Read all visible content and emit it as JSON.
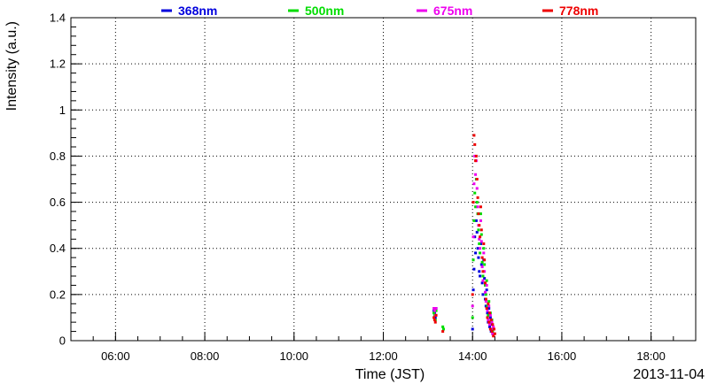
{
  "chart_data": {
    "type": "scatter",
    "title": "",
    "xlabel": "Time (JST)",
    "ylabel": "Intensity (a.u.)",
    "date_label": "2013-11-04",
    "xlim": [
      "05:00",
      "19:00"
    ],
    "ylim": [
      0,
      1.4
    ],
    "x_ticks": [
      "06:00",
      "08:00",
      "10:00",
      "12:00",
      "14:00",
      "16:00",
      "18:00"
    ],
    "y_ticks": [
      "0",
      "0.2",
      "0.4",
      "0.6",
      "0.8",
      "1",
      "1.2",
      "1.4"
    ],
    "grid": true,
    "legend_position": "top",
    "series": [
      {
        "name": "368nm",
        "color": "#0000dd",
        "x": [
          "13:08",
          "13:09",
          "13:10",
          "13:11",
          "14:00",
          "14:01",
          "14:02",
          "14:03",
          "14:04",
          "14:05",
          "14:06",
          "14:07",
          "14:08",
          "14:09",
          "14:10",
          "14:11",
          "14:12",
          "14:13",
          "14:14",
          "14:15",
          "14:16",
          "14:17",
          "14:18",
          "14:19",
          "14:20",
          "14:21",
          "14:22",
          "14:23",
          "14:24",
          "14:25",
          "14:26",
          "14:27",
          "14:28"
        ],
        "y": [
          0.13,
          0.12,
          0.1,
          0.14,
          0.05,
          0.22,
          0.31,
          0.45,
          0.38,
          0.52,
          0.47,
          0.4,
          0.36,
          0.3,
          0.28,
          0.42,
          0.33,
          0.25,
          0.2,
          0.35,
          0.27,
          0.18,
          0.15,
          0.22,
          0.12,
          0.08,
          0.14,
          0.06,
          0.1,
          0.04,
          0.07,
          0.03,
          0.05
        ]
      },
      {
        "name": "500nm",
        "color": "#00dd00",
        "x": [
          "13:08",
          "13:09",
          "13:10",
          "13:11",
          "13:20",
          "13:21",
          "14:00",
          "14:01",
          "14:02",
          "14:03",
          "14:04",
          "14:05",
          "14:06",
          "14:07",
          "14:08",
          "14:09",
          "14:10",
          "14:11",
          "14:12",
          "14:13",
          "14:14",
          "14:15",
          "14:16",
          "14:17",
          "14:18",
          "14:19",
          "14:20",
          "14:21",
          "14:22",
          "14:23",
          "14:24",
          "14:25",
          "14:26",
          "14:27"
        ],
        "y": [
          0.12,
          0.11,
          0.09,
          0.13,
          0.06,
          0.05,
          0.1,
          0.35,
          0.52,
          0.64,
          0.58,
          0.7,
          0.6,
          0.55,
          0.48,
          0.42,
          0.38,
          0.55,
          0.46,
          0.34,
          0.28,
          0.4,
          0.33,
          0.24,
          0.2,
          0.26,
          0.15,
          0.11,
          0.17,
          0.08,
          0.12,
          0.05,
          0.09,
          0.04
        ]
      },
      {
        "name": "675nm",
        "color": "#ee00ee",
        "x": [
          "13:08",
          "13:09",
          "13:10",
          "13:11",
          "14:00",
          "14:01",
          "14:02",
          "14:03",
          "14:04",
          "14:05",
          "14:06",
          "14:07",
          "14:08",
          "14:09",
          "14:10",
          "14:11",
          "14:12",
          "14:13",
          "14:14",
          "14:15",
          "14:16",
          "14:17",
          "14:18",
          "14:19",
          "14:20",
          "14:21",
          "14:22",
          "14:23",
          "14:24",
          "14:25",
          "14:26",
          "14:27",
          "14:28"
        ],
        "y": [
          0.14,
          0.13,
          0.11,
          0.14,
          0.15,
          0.45,
          0.68,
          0.8,
          0.72,
          0.78,
          0.66,
          0.58,
          0.5,
          0.44,
          0.4,
          0.52,
          0.43,
          0.32,
          0.26,
          0.38,
          0.3,
          0.21,
          0.17,
          0.24,
          0.13,
          0.09,
          0.15,
          0.07,
          0.11,
          0.05,
          0.08,
          0.03,
          0.06
        ]
      },
      {
        "name": "778nm",
        "color": "#ee0000",
        "x": [
          "13:08",
          "13:09",
          "13:10",
          "13:11",
          "13:20",
          "14:00",
          "14:01",
          "14:02",
          "14:03",
          "14:04",
          "14:05",
          "14:06",
          "14:07",
          "14:08",
          "14:09",
          "14:10",
          "14:11",
          "14:12",
          "14:13",
          "14:14",
          "14:15",
          "14:16",
          "14:17",
          "14:18",
          "14:19",
          "14:20",
          "14:21",
          "14:22",
          "14:23",
          "14:24",
          "14:25",
          "14:26",
          "14:27",
          "14:28",
          "14:29",
          "14:30"
        ],
        "y": [
          0.1,
          0.09,
          0.08,
          0.11,
          0.04,
          0.2,
          0.6,
          0.89,
          0.85,
          0.78,
          0.8,
          0.7,
          0.62,
          0.55,
          0.5,
          0.45,
          0.58,
          0.48,
          0.36,
          0.3,
          0.42,
          0.35,
          0.25,
          0.18,
          0.14,
          0.1,
          0.16,
          0.08,
          0.12,
          0.05,
          0.09,
          0.04,
          0.07,
          0.02,
          0.05,
          0.03
        ]
      }
    ]
  }
}
